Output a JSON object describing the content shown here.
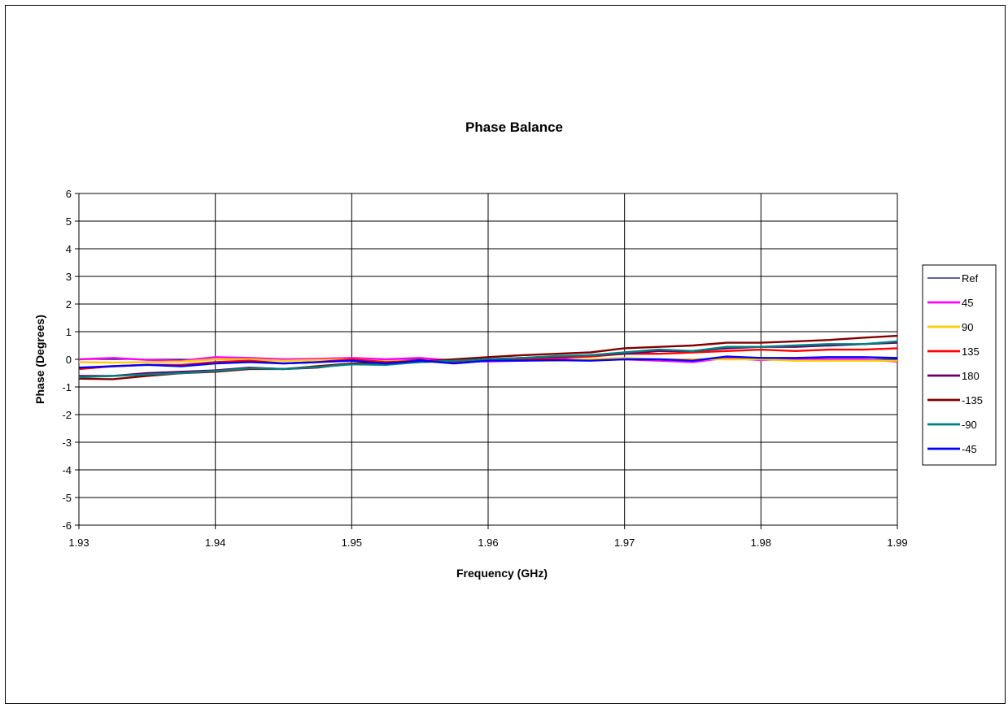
{
  "chart_data": {
    "type": "line",
    "title": "Phase Balance",
    "xlabel": "Frequency (GHz)",
    "ylabel": "Phase (Degrees)",
    "xlim": [
      1.93,
      1.99
    ],
    "ylim": [
      -6,
      6
    ],
    "xticks": [
      "1.93",
      "1.94",
      "1.95",
      "1.96",
      "1.97",
      "1.98",
      "1.99"
    ],
    "yticks": [
      "6",
      "5",
      "4",
      "3",
      "2",
      "1",
      "0",
      "-1",
      "-2",
      "-3",
      "-4",
      "-5",
      "-6"
    ],
    "grid": true,
    "legend_position": "right",
    "x": [
      1.93,
      1.9325,
      1.935,
      1.9375,
      1.94,
      1.9425,
      1.945,
      1.9475,
      1.95,
      1.9525,
      1.955,
      1.9575,
      1.96,
      1.9625,
      1.965,
      1.9675,
      1.97,
      1.9725,
      1.975,
      1.9775,
      1.98,
      1.9825,
      1.985,
      1.9875,
      1.99
    ],
    "series": [
      {
        "name": "Ref",
        "color": "#000066",
        "values": [
          0,
          0,
          0,
          0,
          0,
          0,
          0,
          0,
          0,
          0,
          0,
          0,
          0,
          0,
          0,
          0,
          0,
          0,
          0,
          0,
          0,
          0,
          0,
          0,
          0
        ]
      },
      {
        "name": "45",
        "color": "#ff00ff",
        "values": [
          0.0,
          0.05,
          -0.02,
          -0.05,
          0.08,
          0.05,
          0.0,
          0.02,
          0.05,
          0.0,
          0.05,
          -0.05,
          -0.08,
          -0.05,
          0.0,
          -0.03,
          0.0,
          -0.05,
          -0.1,
          0.05,
          -0.03,
          0.02,
          0.0,
          0.0,
          -0.08
        ]
      },
      {
        "name": "90",
        "color": "#ffcc00",
        "values": [
          -0.1,
          -0.12,
          -0.1,
          -0.08,
          0.0,
          0.0,
          -0.05,
          -0.02,
          0.0,
          -0.08,
          -0.05,
          -0.1,
          -0.05,
          -0.05,
          -0.05,
          0.0,
          0.05,
          0.0,
          0.0,
          0.0,
          0.0,
          -0.05,
          -0.05,
          -0.05,
          -0.05
        ]
      },
      {
        "name": "135",
        "color": "#ff0000",
        "values": [
          -0.35,
          -0.25,
          -0.2,
          -0.2,
          -0.1,
          -0.05,
          -0.15,
          -0.1,
          0.0,
          -0.1,
          -0.05,
          -0.1,
          -0.05,
          0.0,
          0.05,
          0.1,
          0.2,
          0.2,
          0.25,
          0.3,
          0.35,
          0.3,
          0.35,
          0.35,
          0.4
        ]
      },
      {
        "name": "180",
        "color": "#660066",
        "values": [
          -0.6,
          -0.6,
          -0.5,
          -0.45,
          -0.4,
          -0.3,
          -0.35,
          -0.3,
          -0.15,
          -0.15,
          -0.1,
          -0.05,
          0.0,
          0.05,
          0.1,
          0.15,
          0.2,
          0.3,
          0.3,
          0.4,
          0.45,
          0.45,
          0.5,
          0.55,
          0.6
        ]
      },
      {
        "name": "-135",
        "color": "#800000",
        "values": [
          -0.7,
          -0.72,
          -0.6,
          -0.5,
          -0.45,
          -0.35,
          -0.35,
          -0.25,
          -0.15,
          -0.15,
          -0.08,
          0.0,
          0.08,
          0.15,
          0.2,
          0.25,
          0.4,
          0.45,
          0.5,
          0.6,
          0.6,
          0.65,
          0.7,
          0.78,
          0.85
        ]
      },
      {
        "name": "-90",
        "color": "#008080",
        "values": [
          -0.65,
          -0.6,
          -0.55,
          -0.5,
          -0.42,
          -0.32,
          -0.35,
          -0.28,
          -0.18,
          -0.2,
          -0.1,
          -0.05,
          0.0,
          0.05,
          0.12,
          0.15,
          0.25,
          0.35,
          0.3,
          0.45,
          0.45,
          0.5,
          0.55,
          0.55,
          0.65
        ]
      },
      {
        "name": "-45",
        "color": "#0000ff",
        "values": [
          -0.3,
          -0.25,
          -0.2,
          -0.25,
          -0.15,
          -0.1,
          -0.15,
          -0.1,
          -0.05,
          -0.15,
          -0.05,
          -0.15,
          -0.05,
          -0.05,
          -0.03,
          -0.05,
          0.0,
          0.0,
          -0.05,
          0.1,
          0.05,
          0.05,
          0.08,
          0.08,
          0.05
        ]
      }
    ]
  }
}
